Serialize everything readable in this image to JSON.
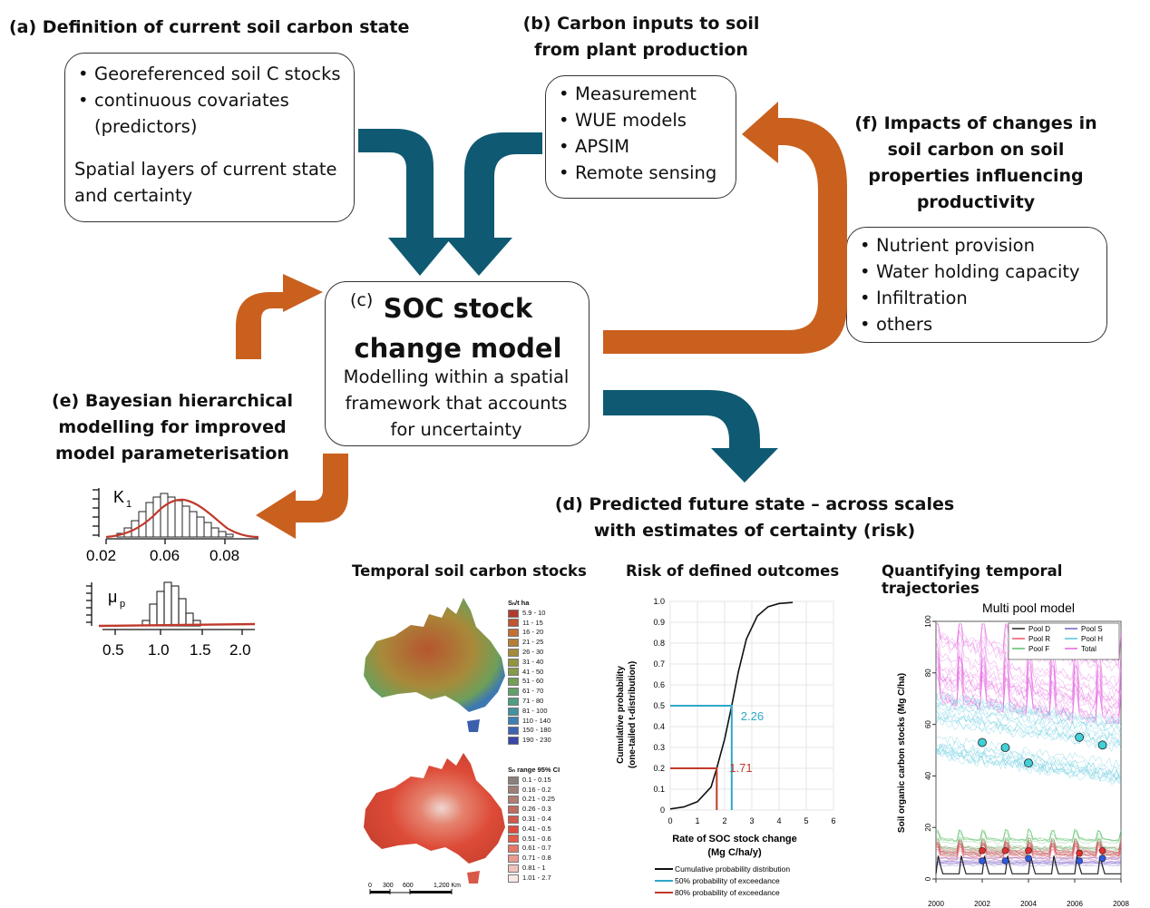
{
  "panel_a": {
    "title": "(a) Definition of current soil carbon state",
    "bullets": [
      "Georeferenced soil C stocks",
      "continuous covariates (predictors)"
    ],
    "note": "Spatial layers of current state and certainty"
  },
  "panel_b": {
    "title": "(b) Carbon inputs to soil from plant production",
    "bullets": [
      "Measurement",
      "WUE models",
      "APSIM",
      "Remote sensing"
    ]
  },
  "panel_c": {
    "label": "(c)",
    "title": "SOC stock change model",
    "description": "Modelling within a spatial framework that accounts for uncertainty"
  },
  "panel_f": {
    "title": "(f) Impacts of changes in soil carbon on soil properties influencing productivity",
    "bullets": [
      "Nutrient provision",
      "Water holding capacity",
      "Infiltration",
      "others"
    ]
  },
  "panel_e": {
    "title": "(e) Bayesian hierarchical modelling for improved model parameterisation",
    "hist1": {
      "label": "K",
      "label_sub": "1",
      "ticks": [
        "0.02",
        "0.06",
        "0.08"
      ]
    },
    "hist2": {
      "label": "μ",
      "label_sub": "p",
      "ticks": [
        "0.5",
        "1.0",
        "1.5",
        "2.0"
      ]
    }
  },
  "panel_d": {
    "title": "(d) Predicted future state – across scales with estimates of certainty (risk)",
    "sub1": "Temporal soil carbon stocks",
    "sub2": "Risk of defined outcomes",
    "sub3": "Quantifying temporal trajectories"
  },
  "map_legend1": {
    "title": "Sₙ/t ha",
    "items": [
      "5.9 - 10",
      "11 - 15",
      "16 - 20",
      "21 - 25",
      "26 - 30",
      "31 - 40",
      "41 - 50",
      "51 - 60",
      "61 - 70",
      "71 - 80",
      "81 - 100",
      "110 - 140",
      "150 - 180",
      "190 - 230"
    ],
    "colors": [
      "#b03a2e",
      "#c0552f",
      "#c66f33",
      "#b67d36",
      "#a58b3b",
      "#95943f",
      "#849b48",
      "#739f55",
      "#61a06a",
      "#4f9e82",
      "#4191a0",
      "#3d7fb2",
      "#3e63b0",
      "#3a46a8"
    ]
  },
  "map_legend2": {
    "title": "Sₙ range 95% CI",
    "items": [
      "0.1 - 0.15",
      "0.16 - 0.2",
      "0.21 - 0.25",
      "0.26 - 0.3",
      "0.31 - 0.4",
      "0.41 - 0.5",
      "0.51 - 0.6",
      "0.61 - 0.7",
      "0.71 - 0.8",
      "0.81 - 1",
      "1.01 - 2.7"
    ],
    "colors": [
      "#8a7f7a",
      "#9d7f76",
      "#b07d73",
      "#c06a60",
      "#d2584b",
      "#de4a3b",
      "#e25a47",
      "#e5786a",
      "#ea9b90",
      "#f0c2bb",
      "#f7e8e6"
    ]
  },
  "scale_bar": {
    "ticks": [
      "0",
      "300",
      "600",
      "1,200 Km"
    ]
  },
  "risk_chart": {
    "ticks_x": [
      "0",
      "1",
      "2",
      "3",
      "4",
      "5",
      "6"
    ],
    "ticks_y": [
      "0",
      "0.1",
      "0.2",
      "0.3",
      "0.4",
      "0.5",
      "0.6",
      "0.7",
      "0.8",
      "0.9",
      "1.0"
    ],
    "xlabel1": "Rate of SOC stock change",
    "xlabel2": "(Mg C/ha/y)",
    "ylabel1": "Cumulative probability",
    "ylabel2": "(one-tailed t-distribution)",
    "annot_50": "2.26",
    "annot_80": "1.71",
    "legend": [
      "Cumulative probability distribution",
      "50% probability of exceedance",
      "80% probability of exceedance"
    ],
    "colors": {
      "cdf": "#111111",
      "p50": "#2ea8c8",
      "p80": "#c0392b"
    }
  },
  "pool_chart": {
    "title": "Multi pool model",
    "ylabel": "Soil organic carbon stocks (Mg C/ha)",
    "ticks_y": [
      "0",
      "20",
      "40",
      "60",
      "80",
      "100"
    ],
    "ticks_x": [
      "2000",
      "2002",
      "2004",
      "2006",
      "2008"
    ],
    "legend": [
      "Pool D",
      "Pool S",
      "Pool R",
      "Pool H",
      "Pool F",
      "Total"
    ],
    "colors": {
      "pool_d": "#222222",
      "pool_s": "#7b5cc9",
      "pool_r": "#e8546a",
      "pool_h": "#52c6dc",
      "pool_f": "#5bbf6a",
      "total": "#e464e0"
    }
  },
  "chart_data": [
    {
      "type": "line",
      "title": "",
      "xlabel": "Rate of SOC stock change (Mg C/ha/y)",
      "ylabel": "Cumulative probability (one-tailed t-distribution)",
      "xlim": [
        0,
        6
      ],
      "ylim": [
        0,
        1.0
      ],
      "series": [
        {
          "name": "Cumulative probability distribution",
          "x": [
            0,
            0.5,
            1.0,
            1.5,
            1.71,
            2.0,
            2.26,
            2.5,
            2.8,
            3.2,
            3.6,
            4.0,
            4.5
          ],
          "y": [
            0.005,
            0.015,
            0.04,
            0.11,
            0.2,
            0.34,
            0.5,
            0.66,
            0.82,
            0.93,
            0.975,
            0.99,
            0.995
          ]
        }
      ],
      "annotations": [
        {
          "name": "50% probability of exceedance",
          "x": 2.26,
          "y": 0.5
        },
        {
          "name": "80% probability of exceedance",
          "x": 1.71,
          "y": 0.2
        }
      ]
    },
    {
      "type": "line",
      "title": "Multi pool model",
      "ylabel": "Soil organic carbon stocks (Mg C/ha)",
      "xlim": [
        2000,
        2008
      ],
      "ylim": [
        0,
        100
      ],
      "observations": {
        "total": {
          "x": [
            2002,
            2003,
            2004,
            2006.2,
            2007.2
          ],
          "y": [
            53,
            51,
            45,
            55,
            52
          ]
        },
        "pool_r": {
          "x": [
            2002,
            2003,
            2004,
            2006.2,
            2007.2
          ],
          "y": [
            11,
            11,
            11,
            10,
            11
          ]
        },
        "pool_s": {
          "x": [
            2002,
            2003,
            2004,
            2006.2,
            2007.2
          ],
          "y": [
            7,
            7,
            8,
            7,
            8
          ]
        }
      }
    }
  ]
}
